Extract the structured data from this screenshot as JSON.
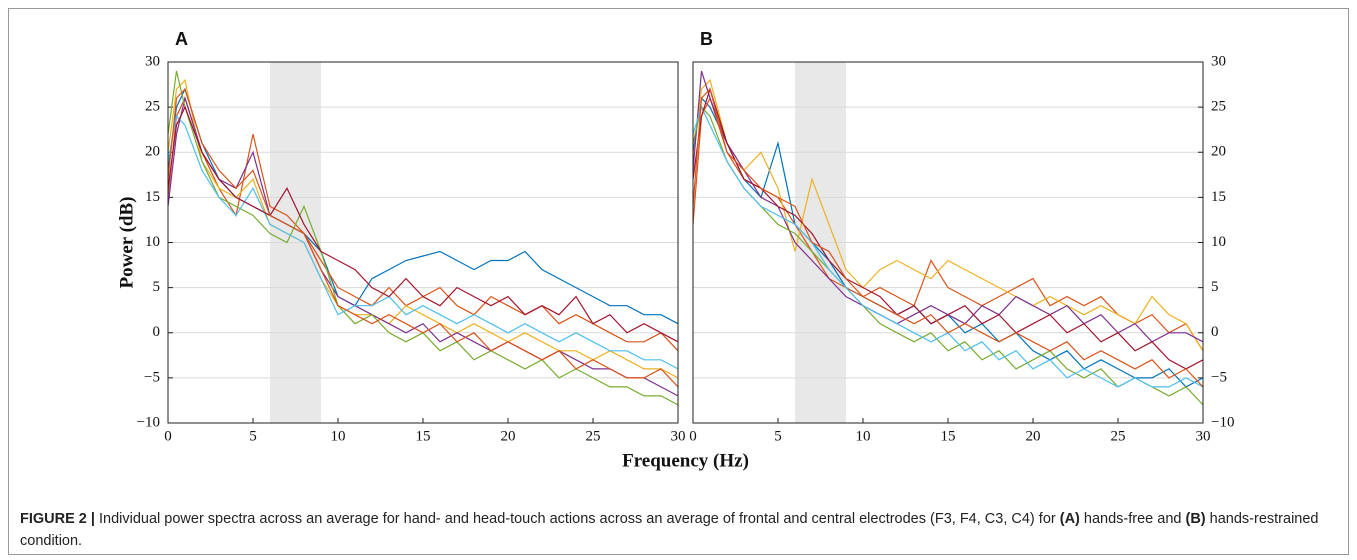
{
  "chart_data": [
    {
      "type": "line",
      "title": "A",
      "ylabel": "Power (dB)",
      "xlabel": "Frequency (Hz)",
      "yaxis_side": "left",
      "xlim": [
        0,
        30
      ],
      "xticks": [
        0,
        5,
        10,
        15,
        20,
        25,
        30
      ],
      "ylim": [
        -10,
        30
      ],
      "yticks": [
        {
          "value": -10,
          "label": "−10"
        },
        {
          "value": -5,
          "label": "−5"
        },
        0,
        5,
        10,
        15,
        20,
        25,
        30
      ],
      "grid": true,
      "highlight": [
        6,
        9
      ],
      "highlight_color": "#e8e8e8",
      "x": [
        0,
        0.5,
        1,
        2,
        3,
        4,
        5,
        6,
        7,
        8,
        9,
        10,
        11,
        12,
        13,
        14,
        15,
        16,
        17,
        18,
        19,
        20,
        21,
        22,
        23,
        24,
        25,
        26,
        27,
        28,
        29,
        30
      ],
      "series": [
        {
          "color": "#0072bd",
          "values": [
            18,
            25,
            27,
            21,
            17,
            15,
            14,
            13,
            12,
            11,
            9,
            4,
            3,
            6,
            7,
            8,
            8.5,
            9,
            8,
            7,
            8,
            8,
            9,
            7,
            6,
            5,
            4,
            3,
            3,
            2,
            2,
            1
          ]
        },
        {
          "color": "#d95319",
          "values": [
            15,
            24,
            26,
            20,
            16,
            13,
            22,
            14,
            13,
            11,
            8,
            5,
            4,
            3,
            5,
            3,
            4,
            5,
            3,
            2,
            4,
            3,
            2,
            3,
            1,
            2,
            1,
            0,
            -1,
            -1,
            0,
            -2
          ]
        },
        {
          "color": "#edb120",
          "values": [
            20,
            27,
            28,
            19,
            16,
            15,
            17,
            12,
            11,
            10,
            6,
            3,
            2,
            2,
            1,
            3,
            2,
            1,
            0,
            1,
            0,
            -1,
            0,
            -1,
            -2,
            -2,
            -3,
            -2,
            -3,
            -4,
            -4,
            -5
          ]
        },
        {
          "color": "#7e2f8e",
          "values": [
            14,
            22,
            26,
            20,
            17,
            16,
            20,
            13,
            12,
            11,
            7,
            4,
            3,
            2,
            1,
            0,
            1,
            -1,
            0,
            -1,
            -2,
            -1,
            -2,
            -3,
            -2,
            -3,
            -4,
            -4,
            -5,
            -5,
            -6,
            -7
          ]
        },
        {
          "color": "#77ac30",
          "values": [
            22,
            29,
            25,
            19,
            15,
            14,
            13,
            11,
            10,
            14,
            9,
            3,
            1,
            2,
            0,
            -1,
            0,
            -2,
            -1,
            -3,
            -2,
            -3,
            -4,
            -3,
            -5,
            -4,
            -5,
            -6,
            -6,
            -7,
            -7,
            -8
          ]
        },
        {
          "color": "#4dbeee",
          "values": [
            19,
            24,
            23,
            18,
            15,
            13,
            16,
            12,
            11,
            10,
            6,
            2,
            3,
            3,
            4,
            2,
            3,
            2,
            1,
            2,
            1,
            0,
            1,
            0,
            -1,
            0,
            -1,
            -2,
            -2,
            -3,
            -3,
            -4
          ]
        },
        {
          "color": "#a2142f",
          "values": [
            16,
            23,
            25,
            20,
            17,
            15,
            14,
            13,
            16,
            12,
            9,
            8,
            7,
            5,
            4,
            6,
            4,
            3,
            5,
            4,
            3,
            4,
            2,
            3,
            2,
            4,
            1,
            2,
            0,
            1,
            0,
            -1
          ]
        },
        {
          "color": "#d95319",
          "values": [
            17,
            26,
            27,
            21,
            18,
            16,
            18,
            13,
            12,
            11,
            7,
            3,
            2,
            1,
            2,
            1,
            0,
            1,
            -1,
            0,
            -2,
            -1,
            -2,
            -3,
            -2,
            -4,
            -3,
            -4,
            -5,
            -5,
            -4,
            -6
          ]
        }
      ]
    },
    {
      "type": "line",
      "title": "B",
      "yaxis_side": "right",
      "xlim": [
        0,
        30
      ],
      "xticks": [
        0,
        5,
        10,
        15,
        20,
        25,
        30
      ],
      "ylim": [
        -10,
        30
      ],
      "yticks": [
        {
          "value": -10,
          "label": "−10"
        },
        {
          "value": -5,
          "label": "−5"
        },
        0,
        5,
        10,
        15,
        20,
        25,
        30
      ],
      "grid": true,
      "highlight": [
        6,
        9
      ],
      "highlight_color": "#e8e8e8",
      "x": [
        0,
        0.5,
        1,
        2,
        3,
        4,
        5,
        6,
        7,
        8,
        9,
        10,
        11,
        12,
        13,
        14,
        15,
        16,
        17,
        18,
        19,
        20,
        21,
        22,
        23,
        24,
        25,
        26,
        27,
        28,
        29,
        30
      ],
      "series": [
        {
          "color": "#0072bd",
          "values": [
            20,
            26,
            25,
            21,
            17,
            15,
            21,
            12,
            10,
            8,
            5,
            4,
            3,
            2,
            3,
            1,
            2,
            0,
            1,
            -1,
            0,
            -2,
            -3,
            -2,
            -4,
            -3,
            -4,
            -5,
            -5,
            -4,
            -6,
            -5
          ]
        },
        {
          "color": "#d95319",
          "values": [
            12,
            24,
            26,
            20,
            17,
            16,
            15,
            12,
            9,
            6,
            5,
            4,
            5,
            4,
            3,
            8,
            5,
            4,
            3,
            4,
            5,
            6,
            3,
            4,
            3,
            4,
            2,
            1,
            2,
            0,
            1,
            -2
          ]
        },
        {
          "color": "#edb120",
          "values": [
            19,
            27,
            28,
            21,
            18,
            20,
            16,
            9,
            17,
            12,
            7,
            5,
            7,
            8,
            7,
            6,
            8,
            7,
            6,
            5,
            4,
            3,
            4,
            3,
            2,
            3,
            2,
            1,
            4,
            2,
            1,
            -2
          ]
        },
        {
          "color": "#7e2f8e",
          "values": [
            18,
            29,
            26,
            21,
            18,
            15,
            14,
            10,
            8,
            6,
            4,
            3,
            2,
            1,
            2,
            3,
            2,
            1,
            3,
            2,
            4,
            3,
            2,
            3,
            1,
            2,
            0,
            1,
            -1,
            0,
            0,
            -1
          ]
        },
        {
          "color": "#77ac30",
          "values": [
            21,
            25,
            24,
            19,
            16,
            14,
            12,
            11,
            9,
            7,
            5,
            3,
            1,
            0,
            -1,
            0,
            -2,
            -1,
            -3,
            -2,
            -4,
            -3,
            -2,
            -4,
            -5,
            -4,
            -6,
            -5,
            -6,
            -7,
            -6,
            -8
          ]
        },
        {
          "color": "#4dbeee",
          "values": [
            22,
            25,
            23,
            19,
            16,
            14,
            13,
            12,
            10,
            7,
            5,
            3,
            2,
            1,
            0,
            -1,
            0,
            -2,
            -1,
            -3,
            -2,
            -4,
            -3,
            -5,
            -4,
            -5,
            -6,
            -5,
            -6,
            -6,
            -5,
            -6
          ]
        },
        {
          "color": "#a2142f",
          "values": [
            17,
            24,
            27,
            21,
            17,
            16,
            14,
            13,
            11,
            8,
            6,
            5,
            4,
            2,
            3,
            1,
            2,
            3,
            1,
            2,
            0,
            1,
            2,
            0,
            1,
            -1,
            0,
            -2,
            -1,
            -3,
            -4,
            -3
          ]
        },
        {
          "color": "#d95319",
          "values": [
            14,
            26,
            27,
            20,
            18,
            16,
            15,
            14,
            10,
            9,
            6,
            4,
            3,
            2,
            1,
            2,
            0,
            1,
            0,
            -1,
            0,
            -1,
            -2,
            -1,
            -3,
            -2,
            -3,
            -4,
            -3,
            -5,
            -4,
            -6
          ]
        }
      ]
    }
  ],
  "caption": {
    "label": "FIGURE 2 |",
    "parts": [
      " Individual power spectra across an average for hand- and head-touch actions across an average of frontal and central electrodes (F3, F4, C3, C4) for ",
      "(A)",
      " hands-free and ",
      "(B)",
      " hands-restrained condition."
    ]
  }
}
